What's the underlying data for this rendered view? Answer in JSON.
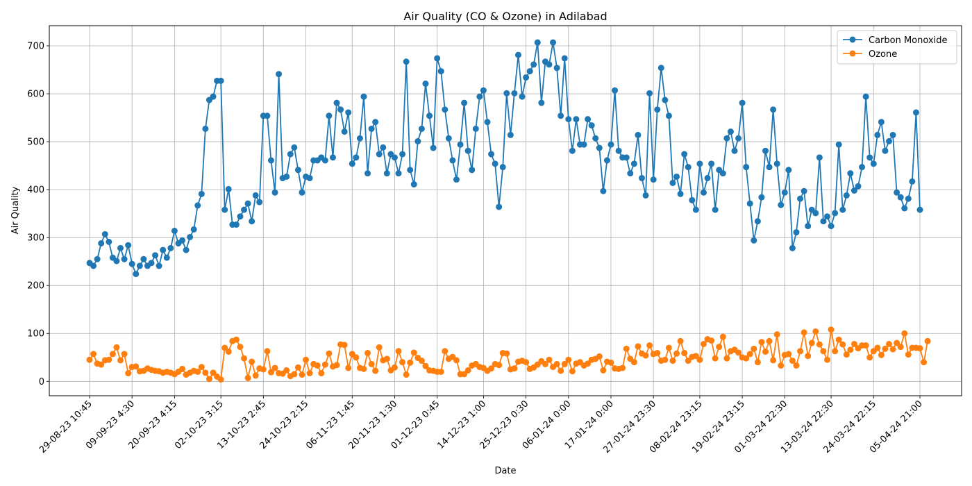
{
  "chart_data": {
    "type": "line",
    "title": "Air Quality (CO & Ozone) in Adilabad",
    "xlabel": "Date",
    "ylabel": "Air Quality",
    "ylim": [
      -30,
      742
    ],
    "yticks": [
      0,
      100,
      200,
      300,
      400,
      500,
      600,
      700
    ],
    "grid": true,
    "legend_position": "top-right",
    "x_tick_labels": [
      "29-08-23 10:45",
      "09-09-23 4:30",
      "20-09-23 4:15",
      "02-10-23 3:15",
      "13-10-23 2:45",
      "24-10-23 2:15",
      "06-11-23 1:45",
      "20-11-23 1:30",
      "01-12-23 0:45",
      "14-12-23 1:00",
      "25-12-23 0:30",
      "06-01-24 0:00",
      "17-01-24 0:00",
      "27-01-24 23:30",
      "08-02-24 23:15",
      "19-02-24 23:15",
      "01-03-24 22:30",
      "13-03-24 22:30",
      "24-03-24 22:15",
      "05-04-24 21:00"
    ],
    "x_tick_indices": [
      0,
      11,
      22,
      34,
      45,
      56,
      68,
      79,
      90,
      102,
      113,
      124,
      135,
      146,
      158,
      169,
      180,
      192,
      203,
      215
    ],
    "series": [
      {
        "name": "Carbon Monoxide",
        "color": "#1f77b4",
        "values": [
          247,
          241,
          255,
          288,
          307,
          291,
          258,
          251,
          278,
          255,
          284,
          245,
          224,
          241,
          255,
          241,
          247,
          263,
          241,
          274,
          258,
          278,
          314,
          288,
          294,
          274,
          301,
          317,
          367,
          391,
          527,
          587,
          594,
          627,
          627,
          358,
          401,
          327,
          327,
          344,
          358,
          371,
          334,
          388,
          374,
          554,
          554,
          461,
          394,
          641,
          424,
          427,
          474,
          488,
          441,
          394,
          427,
          424,
          461,
          461,
          467,
          461,
          554,
          467,
          581,
          567,
          521,
          561,
          454,
          467,
          507,
          594,
          434,
          527,
          541,
          474,
          488,
          434,
          474,
          467,
          434,
          474,
          667,
          441,
          411,
          501,
          527,
          621,
          554,
          487,
          674,
          647,
          567,
          507,
          461,
          421,
          494,
          581,
          481,
          441,
          527,
          594,
          607,
          541,
          474,
          454,
          364,
          447,
          601,
          514,
          601,
          681,
          594,
          634,
          647,
          661,
          707,
          581,
          667,
          661,
          707,
          654,
          554,
          674,
          547,
          481,
          547,
          494,
          494,
          547,
          534,
          507,
          487,
          397,
          461,
          494,
          607,
          481,
          467,
          467,
          434,
          454,
          514,
          424,
          388,
          601,
          421,
          567,
          654,
          587,
          554,
          414,
          427,
          391,
          474,
          447,
          378,
          358,
          454,
          394,
          424,
          454,
          358,
          441,
          434,
          507,
          521,
          481,
          507,
          581,
          447,
          371,
          294,
          334,
          384,
          481,
          447,
          567,
          454,
          368,
          394,
          441,
          278,
          311,
          381,
          397,
          324,
          358,
          351,
          467,
          334,
          344,
          324,
          351,
          494,
          358,
          388,
          434,
          398,
          407,
          447,
          594,
          467,
          454,
          514,
          541,
          481,
          501,
          514,
          394,
          384,
          361,
          381,
          417,
          561,
          358
        ]
      },
      {
        "name": "Ozone",
        "color": "#ff7f0e",
        "values": [
          45,
          57,
          37,
          35,
          44,
          45,
          57,
          71,
          44,
          57,
          17,
          30,
          31,
          21,
          22,
          27,
          24,
          22,
          21,
          18,
          20,
          18,
          15,
          20,
          26,
          14,
          18,
          22,
          20,
          30,
          18,
          5,
          18,
          10,
          4,
          70,
          62,
          84,
          87,
          72,
          48,
          7,
          41,
          12,
          27,
          25,
          63,
          19,
          28,
          17,
          16,
          23,
          11,
          15,
          29,
          14,
          45,
          17,
          36,
          33,
          17,
          35,
          58,
          31,
          34,
          77,
          76,
          28,
          57,
          50,
          28,
          26,
          59,
          36,
          22,
          71,
          44,
          47,
          23,
          29,
          63,
          40,
          14,
          39,
          60,
          49,
          43,
          32,
          23,
          22,
          20,
          20,
          63,
          47,
          51,
          44,
          15,
          15,
          23,
          33,
          36,
          30,
          28,
          22,
          27,
          36,
          34,
          59,
          58,
          25,
          27,
          41,
          43,
          40,
          26,
          29,
          35,
          42,
          36,
          45,
          30,
          36,
          22,
          36,
          45,
          21,
          37,
          40,
          33,
          37,
          45,
          47,
          52,
          23,
          41,
          39,
          27,
          26,
          28,
          68,
          47,
          40,
          73,
          58,
          54,
          75,
          57,
          59,
          43,
          45,
          70,
          43,
          58,
          84,
          59,
          43,
          51,
          53,
          45,
          78,
          88,
          85,
          48,
          72,
          93,
          48,
          63,
          66,
          60,
          50,
          48,
          57,
          68,
          40,
          82,
          62,
          84,
          44,
          98,
          33,
          55,
          57,
          43,
          33,
          63,
          102,
          53,
          80,
          104,
          77,
          63,
          45,
          108,
          63,
          87,
          77,
          56,
          66,
          78,
          69,
          75,
          75,
          50,
          63,
          70,
          55,
          68,
          78,
          67,
          80,
          72,
          100,
          56,
          70,
          70,
          69,
          40,
          84
        ]
      }
    ]
  }
}
